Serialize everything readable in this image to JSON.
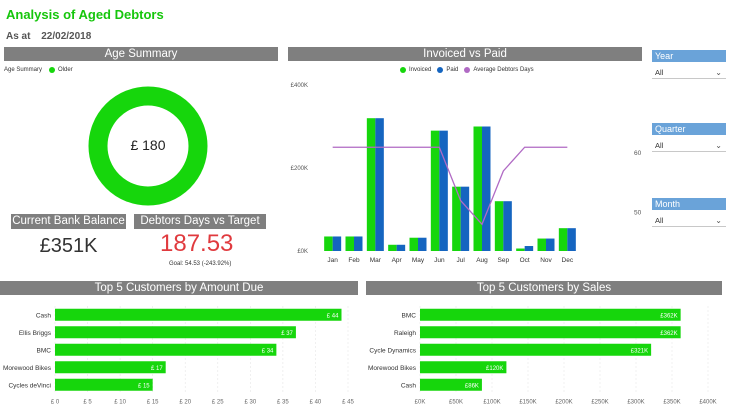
{
  "header": {
    "title": "Analysis of Aged Debtors",
    "as_at_label": "As at",
    "as_at_date": "22/02/2018"
  },
  "age_summary": {
    "title": "Age Summary",
    "legend_title": "Age Summary",
    "legend_item": "Older",
    "center_value": "£ 180",
    "color": "#16d60c"
  },
  "bank_balance": {
    "title": "Current Bank Balance",
    "value": "£351K"
  },
  "debtor_days": {
    "title": "Debtors Days vs Target",
    "value": "187.53",
    "goal": "Goal: 54.53 (-243.92%)"
  },
  "slicers": {
    "year": {
      "label": "Year",
      "selected": "All"
    },
    "quarter": {
      "label": "Quarter",
      "selected": "All"
    },
    "month": {
      "label": "Month",
      "selected": "All"
    }
  },
  "colors": {
    "green": "#16d60c",
    "blue": "#1565c0",
    "purple": "#b06ac4",
    "header_grey": "#7f7f7f",
    "slicer_blue": "#6aa3d9"
  },
  "chart_data": [
    {
      "type": "bar",
      "title": "Invoiced vs Paid",
      "categories": [
        "Jan",
        "Feb",
        "Mar",
        "Apr",
        "May",
        "Jun",
        "Jul",
        "Aug",
        "Sep",
        "Oct",
        "Nov",
        "Dec"
      ],
      "series": [
        {
          "name": "Invoiced",
          "values": [
            35000,
            35000,
            320000,
            15000,
            32000,
            290000,
            155000,
            300000,
            120000,
            6000,
            30000,
            55000
          ]
        },
        {
          "name": "Paid",
          "values": [
            35000,
            35000,
            320000,
            15000,
            32000,
            290000,
            155000,
            300000,
            120000,
            12000,
            30000,
            55000
          ]
        },
        {
          "name": "Average Debtors Days",
          "axis": "right",
          "type": "line",
          "values": [
            61,
            61,
            61,
            61,
            61,
            61,
            52,
            48,
            57,
            61,
            61,
            61
          ]
        }
      ],
      "y_ticks": [
        "£0K",
        "£200K",
        "£400K"
      ],
      "ylim": [
        0,
        400000
      ],
      "y2_ticks": [
        "50",
        "60"
      ],
      "y2lim": [
        43.5,
        71.5
      ],
      "legend": "top-center"
    },
    {
      "type": "bar",
      "orientation": "horizontal",
      "title": "Top 5 Customers by Amount Due",
      "categories": [
        "Cash",
        "Ellis Briggs",
        "BMC",
        "Morewood Bikes",
        "Cycles deVinci"
      ],
      "values": [
        44,
        37,
        34,
        17,
        15
      ],
      "data_labels": [
        "£ 44",
        "£ 37",
        "£ 34",
        "£ 17",
        "£ 15"
      ],
      "x_ticks": [
        "£ 0",
        "£ 5",
        "£ 10",
        "£ 15",
        "£ 20",
        "£ 25",
        "£ 30",
        "£ 35",
        "£ 40",
        "£ 45"
      ],
      "xlim": [
        0,
        45
      ]
    },
    {
      "type": "bar",
      "orientation": "horizontal",
      "title": "Top 5 Customers by Sales",
      "categories": [
        "BMC",
        "Raleigh",
        "Cycle Dynamics",
        "Morewood Bikes",
        "Cash"
      ],
      "values": [
        362,
        362,
        321,
        120,
        86
      ],
      "data_labels": [
        "£362K",
        "£362K",
        "£321K",
        "£120K",
        "£86K"
      ],
      "x_ticks": [
        "£0K",
        "£50K",
        "£100K",
        "£150K",
        "£200K",
        "£250K",
        "£300K",
        "£350K",
        "£400K"
      ],
      "xlim": [
        0,
        400
      ]
    }
  ]
}
